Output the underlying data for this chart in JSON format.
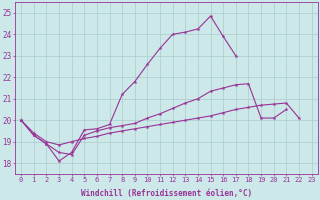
{
  "background_color": "#cce8e8",
  "grid_color": "#aacccc",
  "line_color": "#993399",
  "marker": "*",
  "xlabel": "Windchill (Refroidissement éolien,°C)",
  "ylabel_ticks": [
    18,
    19,
    20,
    21,
    22,
    23,
    24,
    25
  ],
  "xlim": [
    -0.5,
    23.5
  ],
  "ylim": [
    17.5,
    25.5
  ],
  "xticks": [
    0,
    1,
    2,
    3,
    4,
    5,
    6,
    7,
    8,
    9,
    10,
    11,
    12,
    13,
    14,
    15,
    16,
    17,
    18,
    19,
    20,
    21,
    22,
    23
  ],
  "series": [
    {
      "x": [
        0,
        1,
        2,
        3,
        4,
        5,
        6,
        7,
        8,
        9,
        10,
        11,
        12,
        13,
        14,
        15,
        16,
        17,
        18,
        19,
        20,
        21,
        22,
        23
      ],
      "y": [
        20.0,
        19.3,
        18.9,
        18.1,
        18.5,
        19.55,
        19.6,
        19.8,
        21.2,
        21.8,
        22.6,
        23.35,
        24.0,
        24.1,
        24.25,
        24.85,
        23.9,
        23.0,
        null,
        null,
        null,
        null,
        null,
        null
      ]
    },
    {
      "x": [
        0,
        1,
        2,
        3,
        4,
        5,
        6,
        7,
        8,
        9,
        10,
        11,
        12,
        13,
        14,
        15,
        16,
        17,
        18,
        19,
        20,
        21,
        22,
        23
      ],
      "y": [
        20.0,
        19.3,
        18.9,
        18.5,
        18.4,
        19.3,
        19.5,
        19.65,
        19.75,
        19.85,
        20.1,
        20.3,
        20.55,
        20.8,
        21.0,
        21.35,
        21.5,
        21.65,
        21.7,
        20.1,
        20.1,
        20.5,
        null,
        null
      ]
    },
    {
      "x": [
        0,
        1,
        2,
        3,
        4,
        5,
        6,
        7,
        8,
        9,
        10,
        11,
        12,
        13,
        14,
        15,
        16,
        17,
        18,
        19,
        20,
        21,
        22,
        23
      ],
      "y": [
        20.0,
        19.4,
        19.0,
        18.85,
        19.0,
        19.15,
        19.25,
        19.4,
        19.5,
        19.6,
        19.7,
        19.8,
        19.9,
        20.0,
        20.1,
        20.2,
        20.35,
        20.5,
        20.6,
        20.7,
        20.75,
        20.8,
        20.1,
        null
      ]
    }
  ],
  "font_family": "monospace",
  "font_size_ticks": 5,
  "font_size_xlabel": 5.5
}
